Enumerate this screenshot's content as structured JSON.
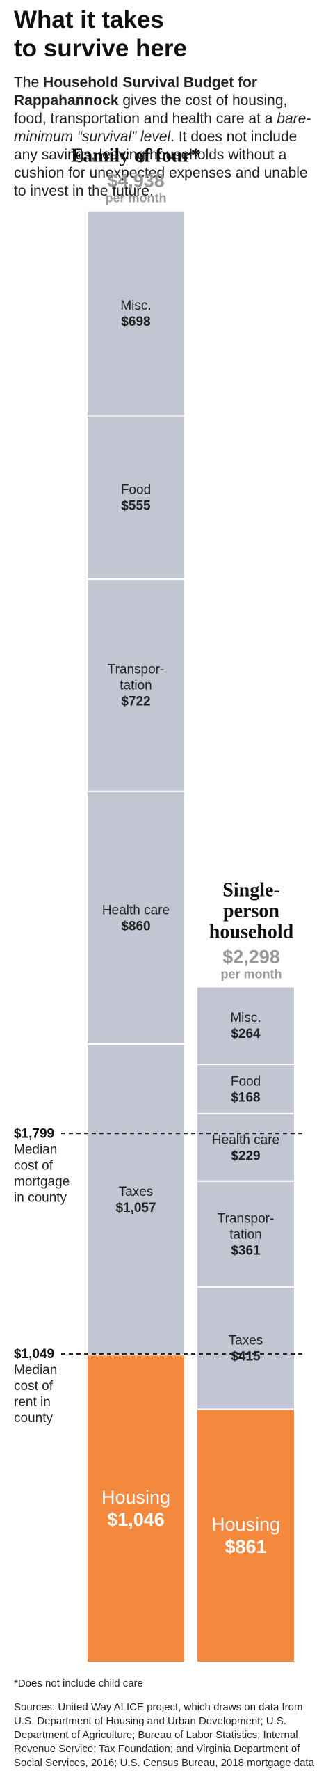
{
  "headline": {
    "line1": "What it takes",
    "line2": "to survive here"
  },
  "intro": {
    "part1": "The ",
    "bold": "Household Survival Budget for Rappahannock",
    "part2": " gives the cost of housing,  food, transportation and health care at a ",
    "italic": "bare-minimum “survival” level",
    "part3": ". It does not include any savings, leaving households without a cushion for unexpected expenses and unable to invest in the future."
  },
  "chart_data": {
    "type": "stacked-bar",
    "unit": "$ per month",
    "columns": [
      {
        "title_lines": [
          "Family of four*"
        ],
        "total_label": "$4,938",
        "per_label": "per month",
        "total": 4938,
        "segments": [
          {
            "lines": [
              "Misc."
            ],
            "value_label": "$698",
            "value": 698
          },
          {
            "lines": [
              "Food"
            ],
            "value_label": "$555",
            "value": 555
          },
          {
            "lines": [
              "Transpor-",
              "tation"
            ],
            "value_label": "$722",
            "value": 722
          },
          {
            "lines": [
              "Health care"
            ],
            "value_label": "$860",
            "value": 860
          },
          {
            "lines": [
              "Taxes"
            ],
            "value_label": "$1,057",
            "value": 1057
          },
          {
            "lines": [
              "Housing"
            ],
            "value_label": "$1,046",
            "value": 1046,
            "housing": true
          }
        ]
      },
      {
        "title_lines": [
          "Single-",
          "person",
          "household"
        ],
        "total_label": "$2,298",
        "per_label": "per month",
        "total": 2298,
        "segments": [
          {
            "lines": [
              "Misc."
            ],
            "value_label": "$264",
            "value": 264
          },
          {
            "lines": [
              "Food"
            ],
            "value_label": "$168",
            "value": 168
          },
          {
            "lines": [
              "Health care"
            ],
            "value_label": "$229",
            "value": 229
          },
          {
            "lines": [
              "Transpor-",
              "tation"
            ],
            "value_label": "$361",
            "value": 361
          },
          {
            "lines": [
              "Taxes"
            ],
            "value_label": "$415",
            "value": 415
          },
          {
            "lines": [
              "Housing"
            ],
            "value_label": "$861",
            "value": 861,
            "housing": true
          }
        ]
      }
    ],
    "reference_lines": [
      {
        "value": 1799,
        "value_label": "$1,799",
        "text_lines": [
          "Median",
          "cost of",
          "mortgage",
          "in county"
        ]
      },
      {
        "value": 1049,
        "value_label": "$1,049",
        "text_lines": [
          "Median",
          "cost of",
          "rent in",
          "county"
        ]
      }
    ],
    "colors": {
      "housing": "#f4883d",
      "other": "#c2c6d3",
      "total_text": "#999999"
    }
  },
  "footnote": "*Does not include child care",
  "sources": "Sources: United Way ALICE project, which draws on data from U.S. Department of Housing and Urban Development; U.S. Department of Agriculture; Bureau of Labor Statistics; Internal Revenue Service; Tax Foundation; and Virginia Department of Social Services, 2016; U.S. Census Bureau, 2018 mortgage data"
}
